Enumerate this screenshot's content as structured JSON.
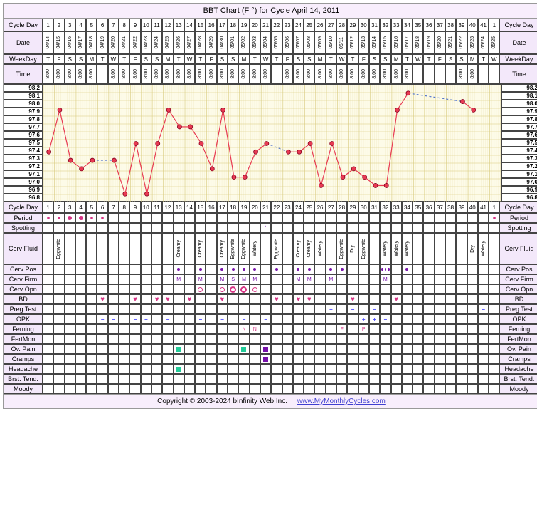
{
  "title": "BBT Chart (F °) for Cycle April 14, 2011",
  "footer_copyright": "Copyright © 2003-2024 bInfinity Web Inc.",
  "footer_link": "www.MyMonthlyCycles.com",
  "leftLabels": [
    "Cycle Day",
    "Date",
    "WeekDay",
    "Time"
  ],
  "rightLabels": [
    "Cycle Day",
    "Date",
    "WeekDay",
    "Time"
  ],
  "days": [
    1,
    2,
    3,
    4,
    5,
    6,
    7,
    8,
    9,
    10,
    11,
    12,
    13,
    14,
    15,
    16,
    17,
    18,
    19,
    20,
    21,
    22,
    23,
    24,
    25,
    26,
    27,
    28,
    29,
    30,
    31,
    32,
    33,
    34,
    35,
    36,
    37,
    38,
    39,
    40,
    41,
    1
  ],
  "dates": [
    "04/14",
    "04/15",
    "04/16",
    "04/17",
    "04/18",
    "04/19",
    "04/20",
    "04/21",
    "04/22",
    "04/23",
    "04/24",
    "04/25",
    "04/26",
    "04/27",
    "04/28",
    "04/29",
    "04/30",
    "05/01",
    "05/02",
    "05/03",
    "05/04",
    "05/05",
    "05/06",
    "05/07",
    "05/08",
    "05/09",
    "05/10",
    "05/11",
    "05/12",
    "05/13",
    "05/14",
    "05/15",
    "05/16",
    "05/17",
    "05/18",
    "05/19",
    "05/20",
    "05/21",
    "05/22",
    "05/23",
    "05/24",
    "05/25"
  ],
  "weekDays": [
    "T",
    "F",
    "S",
    "S",
    "M",
    "T",
    "W",
    "T",
    "F",
    "S",
    "S",
    "M",
    "T",
    "W",
    "T",
    "F",
    "S",
    "S",
    "M",
    "T",
    "W",
    "T",
    "F",
    "S",
    "S",
    "M",
    "T",
    "W",
    "T",
    "F",
    "S",
    "S",
    "M",
    "T",
    "W",
    "T",
    "F",
    "S",
    "S",
    "M",
    "T",
    "W"
  ],
  "times": [
    "8:00",
    "8:00",
    "8:00",
    "8:00",
    "8:00",
    "",
    "8:00",
    "8:00",
    "8:00",
    "8:00",
    "8:00",
    "8:00",
    "8:00",
    "8:00",
    "8:00",
    "8:00",
    "8:00",
    "8:00",
    "8:00",
    "8:00",
    "8:00",
    "",
    "8:00",
    "8:00",
    "8:00",
    "8:00",
    "8:00",
    "8:00",
    "8:00",
    "8:00",
    "8:00",
    "8:00",
    "8:00",
    "8:00",
    "",
    "",
    "",
    "",
    "8:00",
    "8:00",
    "",
    ""
  ],
  "chart": {
    "yLabels": [
      "98.2",
      "98.1",
      "98.0",
      "97.9",
      "97.8",
      "97.7",
      "97.6",
      "97.5",
      "97.4",
      "97.3",
      "97.2",
      "97.1",
      "97.0",
      "96.9",
      "96.8"
    ],
    "ymin": 96.8,
    "ymax": 98.2,
    "points": [
      97.4,
      97.9,
      97.3,
      97.2,
      97.3,
      null,
      97.3,
      96.9,
      97.5,
      96.9,
      97.5,
      97.9,
      97.7,
      97.7,
      97.5,
      97.2,
      97.9,
      97.1,
      97.1,
      97.4,
      97.5,
      null,
      97.4,
      97.4,
      97.5,
      97.0,
      97.5,
      97.1,
      97.2,
      97.1,
      97.0,
      97.0,
      97.9,
      98.1,
      null,
      null,
      null,
      null,
      98.0,
      97.9,
      null,
      null
    ],
    "line_color": "#e83a52",
    "point_color": "#e83a52",
    "grid_major": "#d7c97a",
    "grid_minor": "#eee6b8",
    "bg": "#fdfbe8"
  },
  "symptomRows": [
    {
      "label": "Period",
      "type": "period",
      "vals": [
        "•",
        "•",
        "●",
        "●",
        "•",
        "•",
        "",
        "",
        "",
        "",
        "",
        "",
        "",
        "",
        "",
        "",
        "",
        "",
        "",
        "",
        "",
        "",
        "",
        "",
        "",
        "",
        "",
        "",
        "",
        "",
        "",
        "",
        "",
        "",
        "",
        "",
        "",
        "",
        "",
        "",
        "",
        "•"
      ]
    },
    {
      "label": "Spotting",
      "type": "text",
      "vals": [
        "",
        "",
        "",
        "",
        "",
        "",
        "",
        "",
        "",
        "",
        "",
        "",
        "",
        "",
        "",
        "",
        "",
        "",
        "",
        "",
        "⁚",
        "",
        "",
        "",
        "",
        "",
        "",
        "",
        "",
        "",
        "",
        "",
        "",
        "",
        "",
        "",
        "",
        "",
        "",
        "",
        "",
        ""
      ]
    },
    {
      "label": "Cerv Fluid",
      "type": "vtext",
      "vals": [
        "",
        "Eggwhite",
        "",
        "",
        "",
        "",
        "",
        "",
        "",
        "",
        "",
        "",
        "Creamy",
        "",
        "Creamy",
        "",
        "Creamy",
        "Eggwhite",
        "Eggwhite",
        "Watery",
        "",
        "Eggwhite",
        "",
        "Creamy",
        "Creamy",
        "Watery",
        "",
        "Eggwhite",
        "Dry",
        "Eggwhite",
        "",
        "Watery",
        "Watery",
        "Watery",
        "",
        "",
        "",
        "",
        "",
        "Dry",
        "Watery",
        ""
      ]
    },
    {
      "label": "Cerv Pos",
      "type": "dot",
      "vals": [
        "",
        "",
        "",
        "",
        "",
        "",
        "",
        "",
        "",
        "",
        "",
        "",
        "•",
        "",
        "•",
        "",
        "•",
        "•",
        "•",
        "•",
        "",
        "•",
        "",
        "•",
        "•",
        "",
        "•",
        "•",
        "",
        "",
        "",
        "•••",
        "",
        "•",
        "",
        "",
        "",
        "",
        "",
        "",
        "",
        ""
      ]
    },
    {
      "label": "Cerv Firm",
      "type": "text",
      "vals": [
        "",
        "",
        "",
        "",
        "",
        "",
        "",
        "",
        "",
        "",
        "",
        "",
        "M",
        "",
        "M",
        "",
        "M",
        "S",
        "M",
        "M",
        "",
        "",
        "",
        "M",
        "M",
        "",
        "M",
        "",
        "",
        "",
        "",
        "M",
        "",
        "",
        "",
        "",
        "",
        "",
        "",
        "",
        "",
        ""
      ]
    },
    {
      "label": "Cerv Opn",
      "type": "opn",
      "vals": [
        "",
        "",
        "",
        "",
        "",
        "",
        "",
        "",
        "",
        "",
        "",
        "",
        "",
        "",
        "○",
        "",
        "○",
        "◎",
        "◎",
        "○",
        "",
        "",
        "",
        "",
        "",
        "",
        "",
        "",
        "",
        "",
        "",
        "",
        "",
        "",
        "",
        "",
        "",
        "",
        "",
        "",
        "",
        ""
      ]
    },
    {
      "label": "BD",
      "type": "heart",
      "vals": [
        "",
        "",
        "",
        "",
        "",
        "♥",
        "",
        "",
        "♥",
        "",
        "♥",
        "♥",
        "",
        "♥",
        "",
        "",
        "♥",
        "",
        "",
        "",
        "",
        "♥",
        "",
        "♥",
        "♥",
        "",
        "",
        "",
        "♥",
        "",
        "",
        "",
        "♥",
        "",
        "",
        "",
        "",
        "",
        "",
        "",
        "",
        ""
      ]
    },
    {
      "label": "Preg Test",
      "type": "minus",
      "vals": [
        "",
        "",
        "",
        "",
        "",
        "",
        "",
        "",
        "",
        "",
        "",
        "",
        "",
        "",
        "",
        "",
        "",
        "",
        "",
        "",
        "",
        "",
        "",
        "",
        "",
        "",
        "−",
        "",
        "−",
        "",
        "−",
        "",
        "",
        "",
        "",
        "",
        "",
        "",
        "",
        "",
        "−",
        ""
      ]
    },
    {
      "label": "OPK",
      "type": "opk",
      "vals": [
        "",
        "",
        "",
        "",
        "",
        "−",
        "−",
        "",
        "−",
        "−",
        "",
        "−",
        "",
        "",
        "−",
        "",
        "−",
        "",
        "−",
        "",
        "−",
        "",
        "",
        "",
        "",
        "",
        "",
        "",
        "",
        "+",
        "+",
        "−",
        "",
        "",
        "",
        "",
        "",
        "",
        "",
        "",
        "",
        ""
      ]
    },
    {
      "label": "Ferning",
      "type": "text",
      "vals": [
        "",
        "",
        "",
        "",
        "",
        "",
        "",
        "",
        "",
        "",
        "",
        "",
        "",
        "",
        "",
        "",
        "",
        "",
        "N",
        "N",
        "",
        "",
        "",
        "",
        "",
        "",
        "",
        "F",
        "",
        "P",
        "",
        "",
        "",
        "",
        "",
        "",
        "",
        "",
        "",
        "",
        "",
        ""
      ]
    },
    {
      "label": "FertMon",
      "type": "text",
      "vals": [
        "",
        "",
        "",
        "",
        "",
        "",
        "",
        "",
        "",
        "",
        "",
        "",
        "",
        "",
        "",
        "",
        "",
        "",
        "",
        "",
        "",
        "",
        "",
        "",
        "",
        "",
        "",
        "",
        "",
        "",
        "",
        "",
        "",
        "",
        "",
        "",
        "",
        "",
        "",
        "",
        "",
        ""
      ]
    },
    {
      "label": "Ov. Pain",
      "type": "sq",
      "vals": [
        "",
        "",
        "",
        "",
        "",
        "",
        "",
        "",
        "",
        "",
        "",
        "",
        "g",
        "",
        "",
        "",
        "",
        "",
        "g",
        "",
        "p",
        "",
        "",
        "",
        "",
        "",
        "",
        "",
        "",
        "",
        "",
        "",
        "",
        "",
        "",
        "",
        "",
        "",
        "",
        "",
        "",
        ""
      ]
    },
    {
      "label": "Cramps",
      "type": "sq",
      "vals": [
        "",
        "",
        "",
        "",
        "",
        "",
        "",
        "",
        "",
        "",
        "",
        "",
        "",
        "",
        "",
        "",
        "",
        "",
        "",
        "",
        "p",
        "",
        "",
        "",
        "",
        "",
        "",
        "",
        "",
        "",
        "",
        "",
        "",
        "",
        "",
        "",
        "",
        "",
        "",
        "",
        "",
        ""
      ]
    },
    {
      "label": "Headache",
      "type": "sq",
      "vals": [
        "",
        "",
        "",
        "",
        "",
        "",
        "",
        "",
        "",
        "",
        "",
        "",
        "g",
        "",
        "",
        "",
        "",
        "",
        "",
        "",
        "",
        "",
        "",
        "",
        "",
        "",
        "",
        "",
        "",
        "",
        "",
        "",
        "",
        "",
        "",
        "",
        "",
        "",
        "",
        "",
        "",
        ""
      ]
    },
    {
      "label": "Brst. Tend.",
      "type": "text",
      "vals": [
        "",
        "",
        "",
        "",
        "",
        "",
        "",
        "",
        "",
        "",
        "",
        "",
        "",
        "",
        "",
        "",
        "",
        "",
        "",
        "",
        "",
        "",
        "",
        "",
        "",
        "",
        "",
        "",
        "",
        "",
        "",
        "",
        "",
        "",
        "",
        "",
        "",
        "",
        "",
        "",
        "",
        ""
      ]
    },
    {
      "label": "Moody",
      "type": "text",
      "vals": [
        "",
        "",
        "",
        "",
        "",
        "",
        "",
        "",
        "",
        "",
        "",
        "",
        "",
        "",
        "",
        "",
        "",
        "",
        "",
        "",
        "",
        "",
        "",
        "",
        "",
        "",
        "",
        "",
        "",
        "",
        "",
        "",
        "",
        "",
        "",
        "",
        "",
        "",
        "",
        "",
        "",
        ""
      ]
    }
  ]
}
